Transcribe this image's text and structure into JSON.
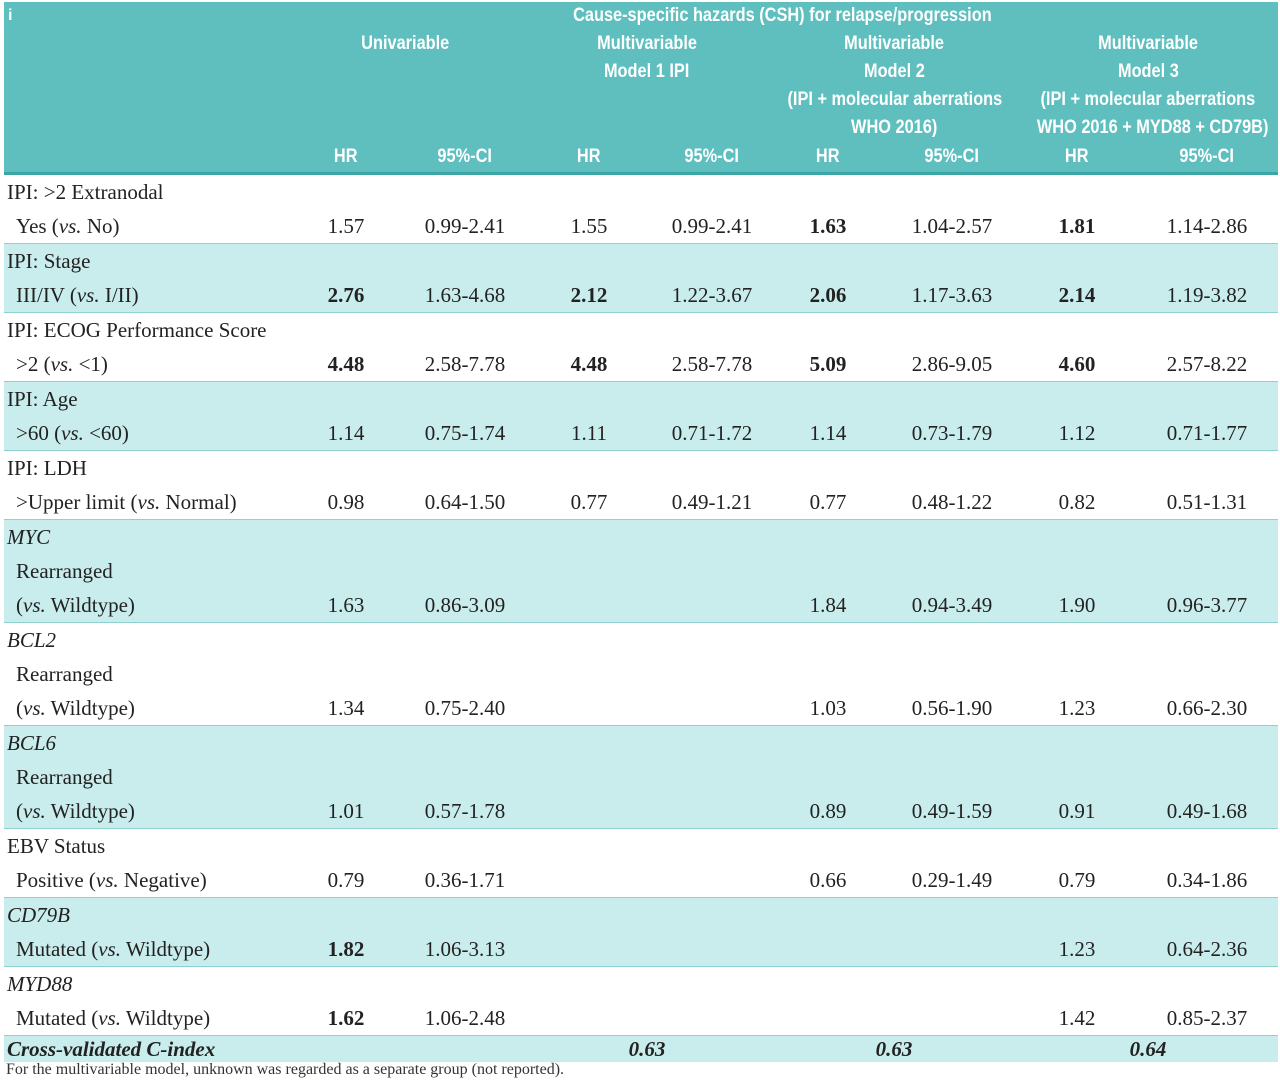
{
  "header": {
    "panel_letter": "i",
    "group_title": "Cause-specific hazards (CSH) for relapse/progression",
    "models": [
      {
        "lines": [
          "Univariable"
        ]
      },
      {
        "lines": [
          "Multivariable",
          "Model 1 IPI"
        ]
      },
      {
        "lines": [
          "Multivariable",
          "Model 2",
          "(IPI + molecular aberrations",
          "WHO 2016)"
        ]
      },
      {
        "lines": [
          "Multivariable",
          "Model 3",
          "(IPI + molecular aberrations",
          "WHO 2016 + MYD88 + CD79B)"
        ]
      }
    ],
    "hr_label": "HR",
    "ci_label": "95%-CI"
  },
  "rows": [
    {
      "title": "IPI: >2 Extranodal",
      "title_italic": false,
      "sub": [
        "Yes (vs. No)"
      ],
      "values": [
        [
          "1.57",
          "0.99-2.41",
          false
        ],
        [
          "1.55",
          "0.99-2.41",
          false
        ],
        [
          "1.63",
          "1.04-2.57",
          true
        ],
        [
          "1.81",
          "1.14-2.86",
          true
        ]
      ]
    },
    {
      "title": "IPI: Stage",
      "title_italic": false,
      "sub": [
        "III/IV (vs. I/II)"
      ],
      "values": [
        [
          "2.76",
          "1.63-4.68",
          true
        ],
        [
          "2.12",
          "1.22-3.67",
          true
        ],
        [
          "2.06",
          "1.17-3.63",
          true
        ],
        [
          "2.14",
          "1.19-3.82",
          true
        ]
      ]
    },
    {
      "title": "IPI: ECOG Performance Score",
      "title_italic": false,
      "sub": [
        ">2 (vs. <1)"
      ],
      "values": [
        [
          "4.48",
          "2.58-7.78",
          true
        ],
        [
          "4.48",
          "2.58-7.78",
          true
        ],
        [
          "5.09",
          "2.86-9.05",
          true
        ],
        [
          "4.60",
          "2.57-8.22",
          true
        ]
      ]
    },
    {
      "title": "IPI: Age",
      "title_italic": false,
      "sub": [
        ">60 (vs. <60)"
      ],
      "values": [
        [
          "1.14",
          "0.75-1.74",
          false
        ],
        [
          "1.11",
          "0.71-1.72",
          false
        ],
        [
          "1.14",
          "0.73-1.79",
          false
        ],
        [
          "1.12",
          "0.71-1.77",
          false
        ]
      ]
    },
    {
      "title": "IPI: LDH",
      "title_italic": false,
      "sub": [
        ">Upper limit (vs. Normal)"
      ],
      "values": [
        [
          "0.98",
          "0.64-1.50",
          false
        ],
        [
          "0.77",
          "0.49-1.21",
          false
        ],
        [
          "0.77",
          "0.48-1.22",
          false
        ],
        [
          "0.82",
          "0.51-1.31",
          false
        ]
      ]
    },
    {
      "title": "MYC",
      "title_italic": true,
      "sub": [
        "Rearranged",
        "(vs. Wildtype)"
      ],
      "values": [
        [
          "1.63",
          "0.86-3.09",
          false
        ],
        [
          "",
          "",
          false
        ],
        [
          "1.84",
          "0.94-3.49",
          false
        ],
        [
          "1.90",
          "0.96-3.77",
          false
        ]
      ]
    },
    {
      "title": "BCL2",
      "title_italic": true,
      "sub": [
        "Rearranged",
        "(vs. Wildtype)"
      ],
      "values": [
        [
          "1.34",
          "0.75-2.40",
          false
        ],
        [
          "",
          "",
          false
        ],
        [
          "1.03",
          "0.56-1.90",
          false
        ],
        [
          "1.23",
          "0.66-2.30",
          false
        ]
      ]
    },
    {
      "title": "BCL6",
      "title_italic": true,
      "sub": [
        "Rearranged",
        "(vs. Wildtype)"
      ],
      "values": [
        [
          "1.01",
          "0.57-1.78",
          false
        ],
        [
          "",
          "",
          false
        ],
        [
          "0.89",
          "0.49-1.59",
          false
        ],
        [
          "0.91",
          "0.49-1.68",
          false
        ]
      ]
    },
    {
      "title": "EBV Status",
      "title_italic": false,
      "sub": [
        "Positive (vs. Negative)"
      ],
      "values": [
        [
          "0.79",
          "0.36-1.71",
          false
        ],
        [
          "",
          "",
          false
        ],
        [
          "0.66",
          "0.29-1.49",
          false
        ],
        [
          "0.79",
          "0.34-1.86",
          false
        ]
      ]
    },
    {
      "title": "CD79B",
      "title_italic": true,
      "sub": [
        "Mutated (vs. Wildtype)"
      ],
      "values": [
        [
          "1.82",
          "1.06-3.13",
          true
        ],
        [
          "",
          "",
          false
        ],
        [
          "",
          "",
          false
        ],
        [
          "1.23",
          "0.64-2.36",
          false
        ]
      ]
    },
    {
      "title": "MYD88",
      "title_italic": true,
      "sub": [
        "Mutated (vs. Wildtype)"
      ],
      "values": [
        [
          "1.62",
          "1.06-2.48",
          true
        ],
        [
          "",
          "",
          false
        ],
        [
          "",
          "",
          false
        ],
        [
          "1.42",
          "0.85-2.37",
          false
        ]
      ]
    }
  ],
  "cindex": {
    "label": "Cross-validated C-index",
    "values": [
      "0.63",
      "0.63",
      "0.64"
    ]
  },
  "footnote": "For the multivariable model, unknown was regarded as a separate group (not reported).",
  "colors": {
    "header_bg": "#5fbfbf",
    "row_tint": "#c9ecec",
    "header_text": "#ffffff"
  }
}
